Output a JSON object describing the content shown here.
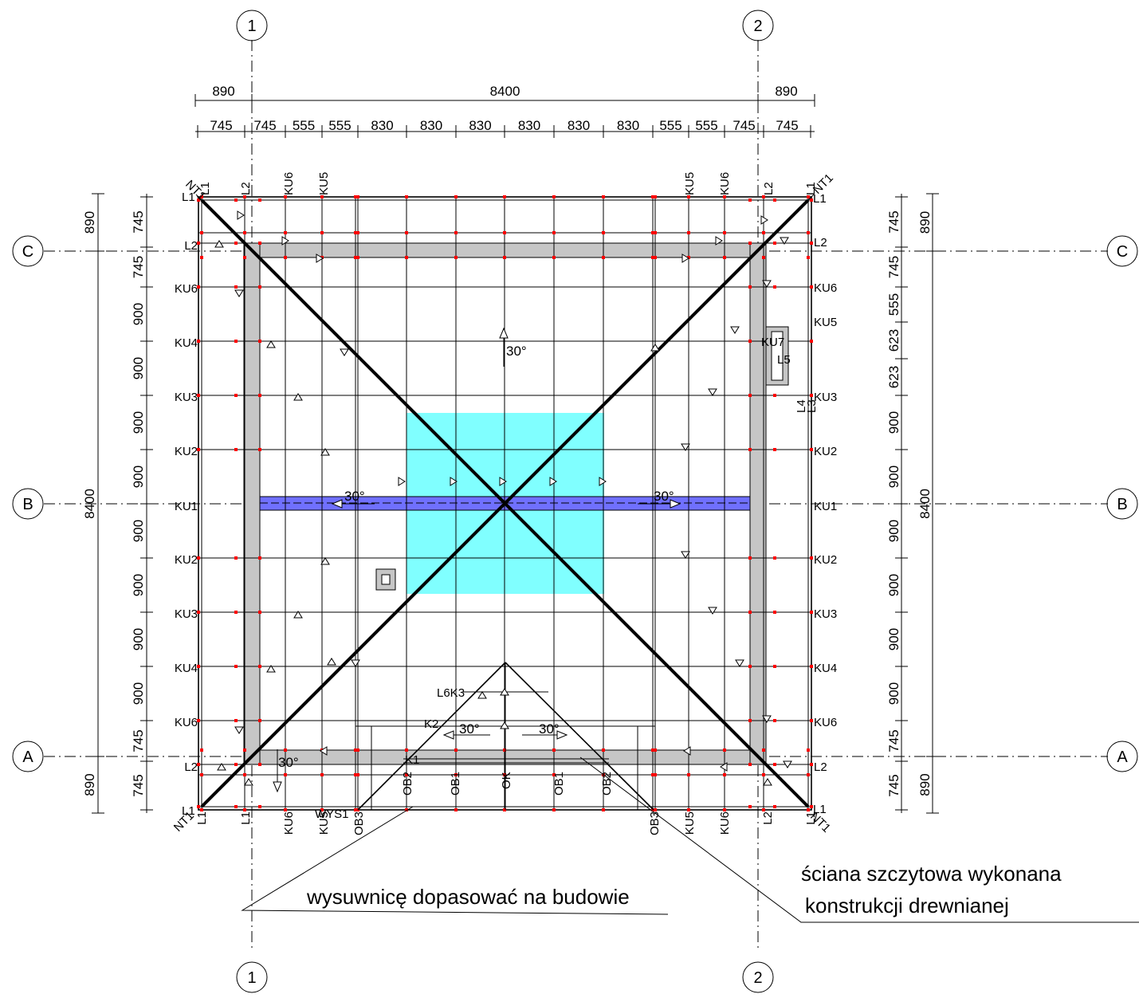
{
  "grid": {
    "columns": [
      "1",
      "2"
    ],
    "rows": [
      "C",
      "B",
      "A"
    ]
  },
  "dims_top_overall": [
    "890",
    "8400",
    "890"
  ],
  "dims_top_detail": [
    "745",
    "745",
    "555",
    "555",
    "830",
    "830",
    "830",
    "830",
    "830",
    "830",
    "555",
    "555",
    "745",
    "745"
  ],
  "dims_left_overall": [
    "890",
    "8400",
    "890"
  ],
  "dims_left_detail": [
    "745",
    "745",
    "900",
    "900",
    "900",
    "900",
    "900",
    "900",
    "900",
    "900",
    "745",
    "745"
  ],
  "dims_right_overall": [
    "890",
    "8400",
    "890"
  ],
  "dims_right_detail": [
    "745",
    "745",
    "555",
    "623",
    "623",
    "900",
    "900",
    "900",
    "900",
    "900",
    "900",
    "745",
    "745"
  ],
  "labels_left": [
    "L2",
    "KU6",
    "KU4",
    "KU3",
    "KU2",
    "KU1",
    "KU2",
    "KU3",
    "KU4",
    "KU6",
    "L2"
  ],
  "labels_right": [
    "L2",
    "KU6",
    "KU5",
    "KU3",
    "KU2",
    "KU1",
    "KU2",
    "KU3",
    "KU4",
    "KU6",
    "L2"
  ],
  "labels_top": [
    "L1",
    "L2",
    "KU6",
    "KU5",
    "KU5",
    "KU6",
    "L2",
    "L1"
  ],
  "labels_bottom": [
    "L1",
    "L1",
    "KU6",
    "KU5",
    "OB3",
    "OB3",
    "KU5",
    "KU6",
    "L2",
    "L1"
  ],
  "corner_labels": [
    "NT1",
    "NT1",
    "NT1",
    "NT1",
    "L1",
    "L1",
    "L1",
    "L1"
  ],
  "angles": [
    "30°",
    "30°",
    "30°",
    "30°",
    "30°",
    "30°"
  ],
  "misc_labels": {
    "ku7": "KU7",
    "l5": "L5",
    "l4": "L4",
    "l3": "L3",
    "l6k3": "L6K3",
    "k2": "K2",
    "k1": "K1",
    "wys1": "WYS1",
    "ob2_left": "OB2",
    "ob1_left": "OB1",
    "ob1_right": "OB1",
    "ob2_right": "OB2",
    "ok": "OK"
  },
  "notes": {
    "note1": "wysuwnicę dopasować na budowie",
    "note2_line1": "ściana szczytowa wykonana",
    "note2_line2": "konstrukcji drewnianej"
  },
  "colors": {
    "opening": "#80ffff",
    "beam": "#7070ff",
    "wall": "#c6c6c6",
    "node": "#ff0000"
  }
}
